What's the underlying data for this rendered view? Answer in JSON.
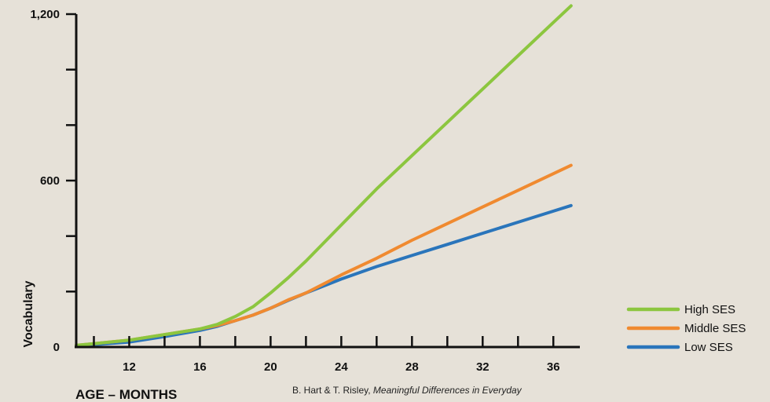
{
  "chart_data": {
    "type": "line",
    "xlabel": "AGE – MONTHS",
    "ylabel": "Vocabulary",
    "xlim": [
      9,
      37.5
    ],
    "ylim": [
      0,
      1200
    ],
    "x_ticks": [
      12,
      16,
      20,
      24,
      28,
      32,
      36
    ],
    "y_ticks": [
      0,
      600,
      1200
    ],
    "y_tick_labels": [
      "0",
      "600",
      "1,200"
    ],
    "grid": false,
    "legend_position": "bottom-right",
    "series": [
      {
        "name": "High SES",
        "color": "#8cc63f",
        "x": [
          9,
          12,
          14,
          16,
          17,
          18,
          19,
          20,
          21,
          22,
          24,
          26,
          28,
          30,
          32,
          34,
          36,
          37
        ],
        "y": [
          6,
          25,
          45,
          65,
          82,
          110,
          145,
          195,
          250,
          310,
          440,
          570,
          690,
          810,
          930,
          1050,
          1170,
          1230
        ]
      },
      {
        "name": "Middle SES",
        "color": "#f08a30",
        "x": [
          9,
          12,
          14,
          16,
          17,
          18,
          19,
          20,
          21,
          22,
          24,
          26,
          28,
          30,
          32,
          34,
          36,
          37
        ],
        "y": [
          6,
          25,
          45,
          65,
          78,
          95,
          115,
          140,
          170,
          195,
          260,
          320,
          385,
          445,
          505,
          565,
          625,
          655
        ]
      },
      {
        "name": "Low SES",
        "color": "#2a75bb",
        "x": [
          9,
          12,
          14,
          16,
          17,
          18,
          19,
          20,
          21,
          22,
          24,
          26,
          28,
          30,
          32,
          34,
          36,
          37
        ],
        "y": [
          4,
          18,
          38,
          60,
          75,
          95,
          115,
          140,
          168,
          195,
          245,
          290,
          330,
          370,
          410,
          450,
          490,
          510
        ]
      }
    ]
  },
  "credit": {
    "plain": "B. Hart & T. Risley, ",
    "italic": "Meaningful Differences in Everyday"
  }
}
